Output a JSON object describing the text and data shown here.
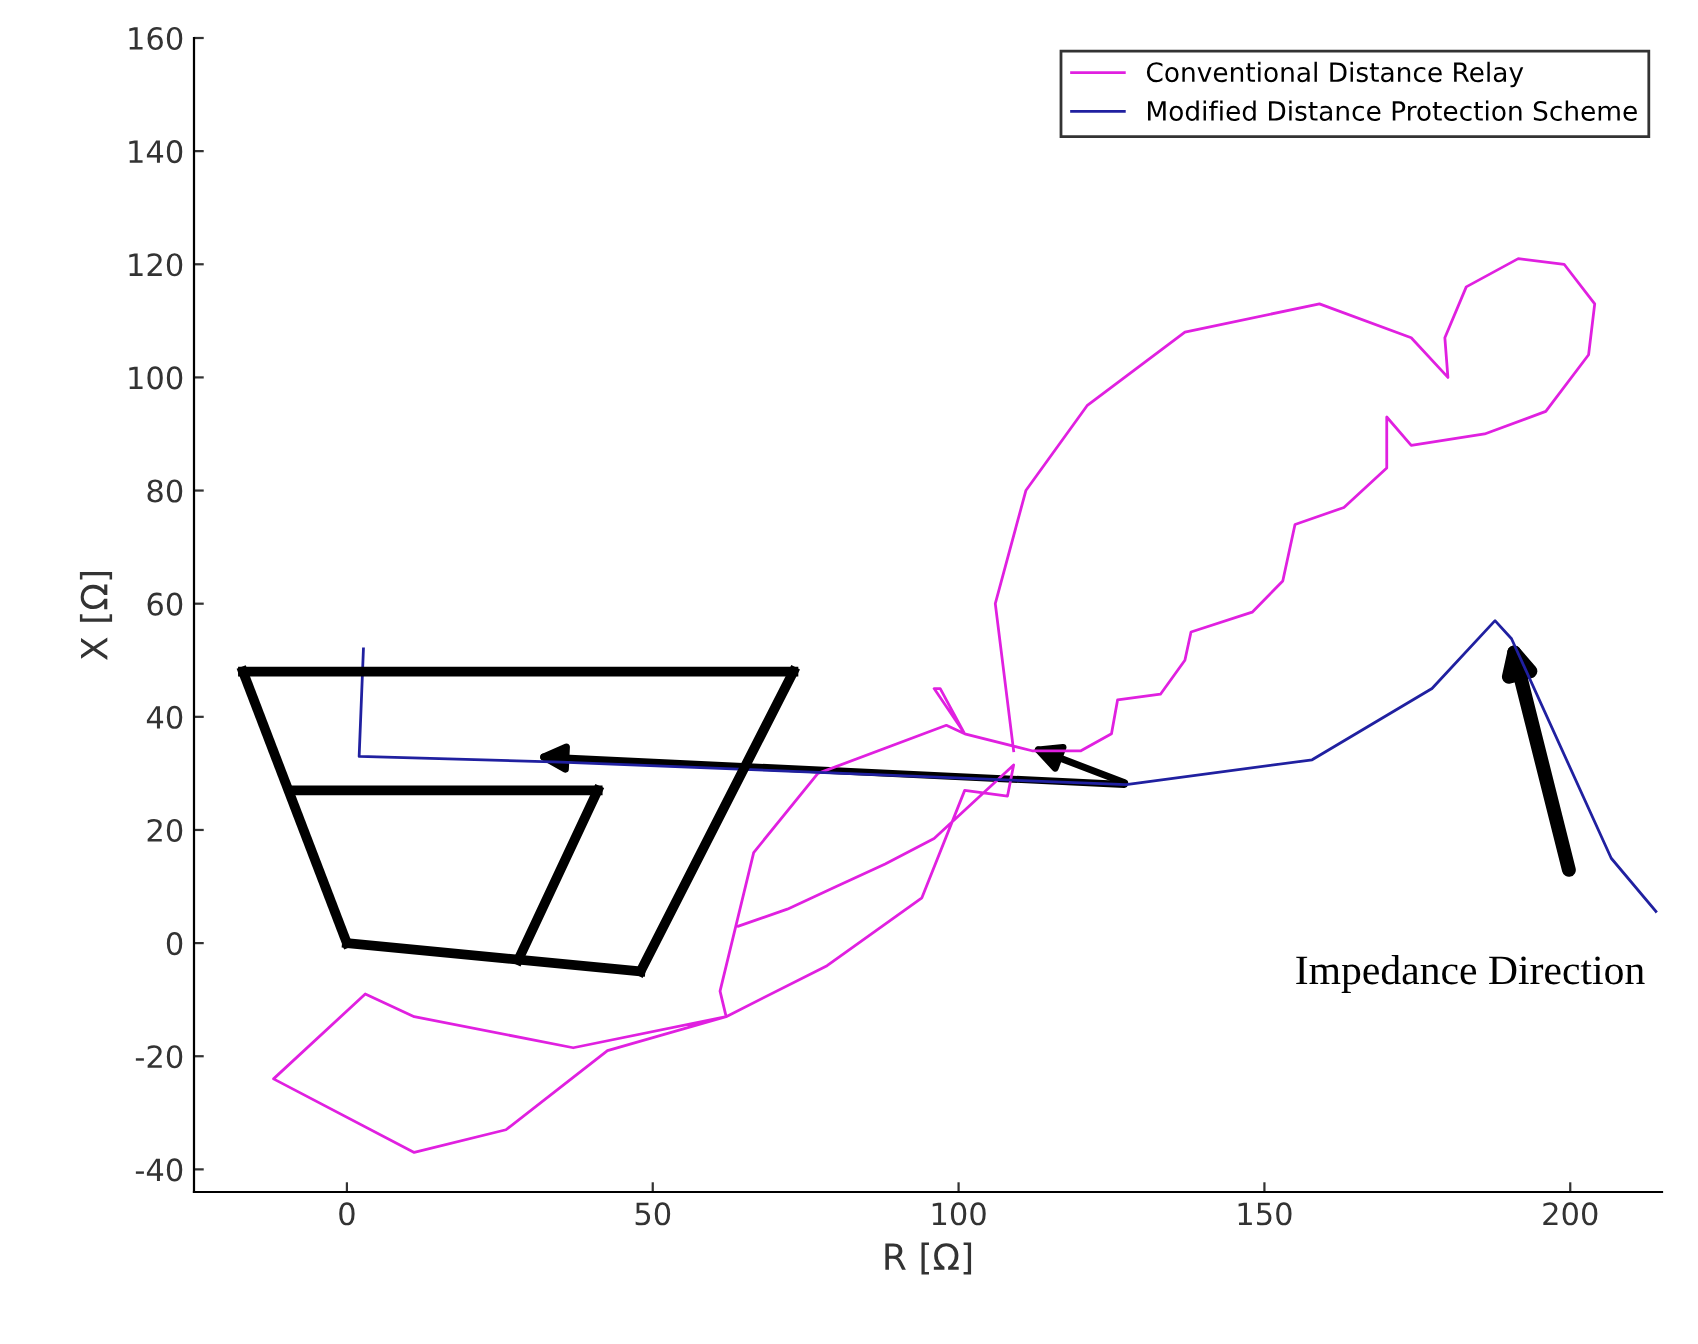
{
  "chart_data": {
    "type": "line",
    "xlabel": "R [Ω]",
    "ylabel": "X [Ω]",
    "xlim": [
      -25,
      215
    ],
    "ylim": [
      -44,
      160
    ],
    "xticks": [
      0,
      50,
      100,
      150,
      200
    ],
    "yticks": [
      -40,
      -20,
      0,
      20,
      40,
      60,
      80,
      100,
      120,
      140,
      160
    ],
    "grid": false,
    "legend": "top right",
    "annotations": [
      "Impedance Direction"
    ],
    "series": [
      {
        "name": "Conventional Distance Relay",
        "color": "#e020e0",
        "x": [
          109,
          106,
          111,
          121,
          137,
          159,
          174,
          180,
          179.5,
          183,
          191.5,
          199,
          204,
          203,
          196,
          186,
          174,
          170,
          170,
          163,
          155,
          153,
          148,
          138,
          137,
          133,
          126,
          125,
          120,
          112,
          101,
          96,
          97,
          101,
          98,
          77,
          66.5,
          61,
          62,
          42.6,
          26,
          11,
          -12,
          3,
          11,
          37,
          62,
          78.5,
          94,
          101,
          108,
          109,
          96,
          88,
          80,
          72,
          64
        ],
        "values": [
          34,
          60,
          80,
          95,
          108,
          113,
          107,
          100,
          107,
          116,
          121,
          120,
          113,
          104,
          94,
          90,
          88,
          93,
          84,
          77,
          74,
          64,
          58.5,
          55,
          50,
          44,
          43,
          37,
          34,
          34,
          37,
          45,
          45,
          37,
          38.5,
          30,
          16,
          -8.5,
          -13,
          -19,
          -33,
          -37,
          -24,
          -9,
          -13,
          -18.5,
          -13,
          -4,
          8,
          27,
          26,
          31.5,
          18.5,
          14,
          10,
          6,
          3
        ]
      },
      {
        "name": "Modified Distance Protection Scheme",
        "color": "#2020a0",
        "x": [
          214,
          206.7,
          190.4,
          187.7,
          177.4,
          157.8,
          127.4,
          35,
          2,
          2.7
        ],
        "values": [
          5.6,
          15,
          53.8,
          57,
          45,
          32.4,
          28,
          32,
          33,
          52
        ]
      },
      {
        "color": "#000000",
        "x": [
          -17,
          73
        ],
        "values": [
          48,
          48
        ]
      },
      {
        "color": "#000000",
        "x": [
          48,
          73
        ],
        "values": [
          -5,
          48
        ]
      },
      {
        "color": "#000000",
        "x": [
          0,
          48
        ],
        "values": [
          0,
          -5
        ]
      },
      {
        "color": "#000000",
        "x": [
          -17,
          0
        ],
        "values": [
          48,
          0
        ]
      },
      {
        "color": "#000000",
        "x": [
          -9,
          41
        ],
        "values": [
          27,
          27
        ]
      },
      {
        "color": "#000000",
        "x": [
          28,
          41
        ],
        "values": [
          -3,
          27
        ]
      }
    ]
  }
}
